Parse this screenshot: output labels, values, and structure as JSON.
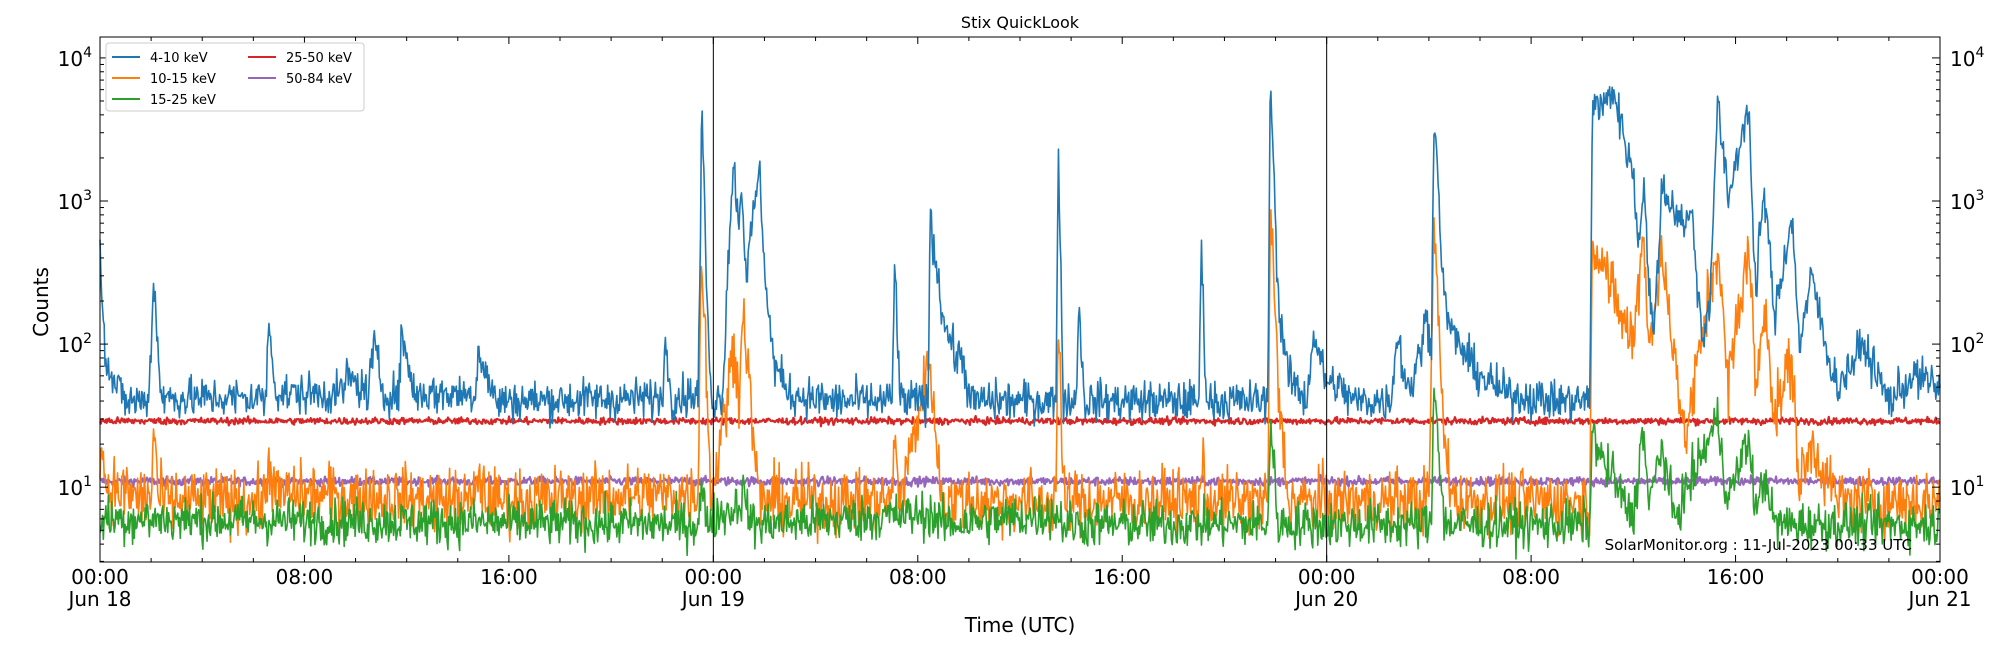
{
  "chart_data": {
    "type": "line",
    "title": "Stix QuickLook",
    "xlabel": "Time (UTC)",
    "ylabel": "Counts",
    "yscale": "log",
    "ylim": [
      3,
      14000
    ],
    "xlim_hours": [
      0,
      72
    ],
    "grid": false,
    "legend_position": "top-left",
    "x_ticks": [
      {
        "hour": 0,
        "line1": "00:00",
        "line2": "Jun 18"
      },
      {
        "hour": 8,
        "line1": "08:00",
        "line2": ""
      },
      {
        "hour": 16,
        "line1": "16:00",
        "line2": ""
      },
      {
        "hour": 24,
        "line1": "00:00",
        "line2": "Jun 19"
      },
      {
        "hour": 32,
        "line1": "08:00",
        "line2": ""
      },
      {
        "hour": 40,
        "line1": "16:00",
        "line2": ""
      },
      {
        "hour": 48,
        "line1": "00:00",
        "line2": "Jun 20"
      },
      {
        "hour": 56,
        "line1": "08:00",
        "line2": ""
      },
      {
        "hour": 64,
        "line1": "16:00",
        "line2": ""
      },
      {
        "hour": 72,
        "line1": "00:00",
        "line2": "Jun 21"
      }
    ],
    "y_ticks": [
      {
        "value": 10,
        "base": "10",
        "exp": "1"
      },
      {
        "value": 100,
        "base": "10",
        "exp": "2"
      },
      {
        "value": 1000,
        "base": "10",
        "exp": "3"
      },
      {
        "value": 10000,
        "base": "10",
        "exp": "4"
      }
    ],
    "day_boundaries_hours": [
      24,
      48
    ],
    "annotation": "SolarMonitor.org : 11-Jul-2023 00:33 UTC",
    "series": [
      {
        "name": "4-10 keV",
        "color": "#1f77b4",
        "base": 37,
        "noise": 0.07,
        "points": [
          [
            0.0,
            520
          ],
          [
            0.2,
            90
          ],
          [
            0.5,
            55
          ],
          [
            1.0,
            40
          ],
          [
            1.9,
            40
          ],
          [
            2.1,
            280
          ],
          [
            2.4,
            42
          ],
          [
            6.5,
            42
          ],
          [
            6.6,
            145
          ],
          [
            6.9,
            45
          ],
          [
            9.5,
            45
          ],
          [
            9.6,
            60
          ],
          [
            10.5,
            45
          ],
          [
            10.7,
            100
          ],
          [
            11.1,
            45
          ],
          [
            11.7,
            45
          ],
          [
            11.8,
            120
          ],
          [
            12.3,
            45
          ],
          [
            14.7,
            45
          ],
          [
            14.8,
            95
          ],
          [
            15.2,
            55
          ],
          [
            15.5,
            40
          ],
          [
            22.0,
            42
          ],
          [
            22.1,
            100
          ],
          [
            22.4,
            42
          ],
          [
            23.4,
            45
          ],
          [
            23.5,
            600
          ],
          [
            23.55,
            5800
          ],
          [
            23.7,
            400
          ],
          [
            23.9,
            42
          ],
          [
            24.3,
            42
          ],
          [
            24.4,
            60
          ],
          [
            24.6,
            500
          ],
          [
            24.8,
            1800
          ],
          [
            25.0,
            700
          ],
          [
            25.1,
            1300
          ],
          [
            25.3,
            300
          ],
          [
            25.6,
            900
          ],
          [
            25.8,
            1600
          ],
          [
            26.1,
            200
          ],
          [
            26.4,
            70
          ],
          [
            27.0,
            45
          ],
          [
            28.5,
            40
          ],
          [
            31.0,
            40
          ],
          [
            31.1,
            420
          ],
          [
            31.3,
            40
          ],
          [
            32.4,
            40
          ],
          [
            32.5,
            900
          ],
          [
            32.6,
            500
          ],
          [
            32.8,
            300
          ],
          [
            33.0,
            150
          ],
          [
            33.5,
            80
          ],
          [
            33.8,
            80
          ],
          [
            34.0,
            40
          ],
          [
            37.4,
            40
          ],
          [
            37.5,
            2200
          ],
          [
            37.7,
            40
          ],
          [
            38.2,
            40
          ],
          [
            38.3,
            220
          ],
          [
            38.5,
            40
          ],
          [
            43.0,
            40
          ],
          [
            43.1,
            480
          ],
          [
            43.3,
            40
          ],
          [
            45.7,
            40
          ],
          [
            45.8,
            9000
          ],
          [
            46.1,
            200
          ],
          [
            46.5,
            60
          ],
          [
            47.2,
            40
          ],
          [
            47.5,
            120
          ],
          [
            47.9,
            60
          ],
          [
            48.0,
            55
          ],
          [
            48.5,
            50
          ],
          [
            49.0,
            40
          ],
          [
            50.5,
            40
          ],
          [
            50.8,
            130
          ],
          [
            51.0,
            60
          ],
          [
            51.3,
            50
          ],
          [
            51.6,
            80
          ],
          [
            51.9,
            150
          ],
          [
            52.1,
            100
          ],
          [
            52.2,
            4500
          ],
          [
            52.6,
            200
          ],
          [
            52.9,
            120
          ],
          [
            53.5,
            80
          ],
          [
            54.0,
            60
          ],
          [
            55.0,
            45
          ],
          [
            57.0,
            40
          ],
          [
            58.3,
            40
          ],
          [
            58.4,
            5200
          ],
          [
            58.8,
            4400
          ],
          [
            59.2,
            6100
          ],
          [
            59.6,
            3000
          ],
          [
            60.0,
            1500
          ],
          [
            60.2,
            500
          ],
          [
            60.4,
            1400
          ],
          [
            60.6,
            300
          ],
          [
            60.8,
            100
          ],
          [
            61.1,
            1200
          ],
          [
            61.6,
            900
          ],
          [
            62.0,
            700
          ],
          [
            62.3,
            800
          ],
          [
            62.7,
            100
          ],
          [
            63.0,
            220
          ],
          [
            63.3,
            5000
          ],
          [
            63.7,
            1000
          ],
          [
            64.5,
            4900
          ],
          [
            64.8,
            200
          ],
          [
            65.0,
            800
          ],
          [
            65.2,
            1000
          ],
          [
            65.5,
            150
          ],
          [
            65.8,
            300
          ],
          [
            66.2,
            800
          ],
          [
            66.5,
            100
          ],
          [
            67.0,
            300
          ],
          [
            67.5,
            100
          ],
          [
            68.0,
            50
          ],
          [
            69.0,
            100
          ],
          [
            70.0,
            40
          ],
          [
            71.0,
            60
          ],
          [
            72.0,
            50
          ]
        ]
      },
      {
        "name": "10-15 keV",
        "color": "#ff7f0e",
        "base": 8.3,
        "noise": 0.11,
        "points": [
          [
            0.0,
            20
          ],
          [
            0.3,
            10
          ],
          [
            2.0,
            8
          ],
          [
            2.1,
            28
          ],
          [
            2.3,
            8
          ],
          [
            6.5,
            8
          ],
          [
            6.6,
            18
          ],
          [
            6.8,
            9
          ],
          [
            14.7,
            8
          ],
          [
            14.8,
            13
          ],
          [
            15.1,
            8
          ],
          [
            23.4,
            9
          ],
          [
            23.5,
            200
          ],
          [
            23.55,
            440
          ],
          [
            23.7,
            100
          ],
          [
            23.9,
            8
          ],
          [
            24.6,
            50
          ],
          [
            24.8,
            100
          ],
          [
            25.0,
            50
          ],
          [
            25.2,
            170
          ],
          [
            25.5,
            30
          ],
          [
            25.8,
            8
          ],
          [
            31.0,
            8
          ],
          [
            31.1,
            25
          ],
          [
            31.3,
            8
          ],
          [
            32.5,
            80
          ],
          [
            32.7,
            20
          ],
          [
            33.0,
            8
          ],
          [
            37.4,
            8
          ],
          [
            37.5,
            170
          ],
          [
            37.7,
            8
          ],
          [
            43.0,
            8
          ],
          [
            43.1,
            14
          ],
          [
            43.3,
            8
          ],
          [
            45.7,
            8
          ],
          [
            45.8,
            1000
          ],
          [
            46.1,
            50
          ],
          [
            46.5,
            8
          ],
          [
            52.0,
            8
          ],
          [
            52.2,
            720
          ],
          [
            52.6,
            20
          ],
          [
            53.0,
            8
          ],
          [
            58.3,
            8
          ],
          [
            58.4,
            500
          ],
          [
            58.8,
            450
          ],
          [
            59.2,
            200
          ],
          [
            59.6,
            150
          ],
          [
            60.0,
            100
          ],
          [
            60.4,
            650
          ],
          [
            60.6,
            100
          ],
          [
            61.1,
            400
          ],
          [
            61.6,
            100
          ],
          [
            62.0,
            20
          ],
          [
            63.3,
            500
          ],
          [
            63.7,
            50
          ],
          [
            64.5,
            500
          ],
          [
            64.8,
            50
          ],
          [
            65.2,
            200
          ],
          [
            65.5,
            30
          ],
          [
            66.2,
            80
          ],
          [
            66.5,
            10
          ],
          [
            67.0,
            20
          ],
          [
            68.0,
            8
          ],
          [
            72.0,
            8
          ]
        ]
      },
      {
        "name": "15-25 keV",
        "color": "#2ca02c",
        "base": 5.5,
        "noise": 0.08,
        "points": [
          [
            0.0,
            6
          ],
          [
            23.4,
            5.5
          ],
          [
            23.55,
            10
          ],
          [
            23.7,
            6
          ],
          [
            24.8,
            7
          ],
          [
            25.2,
            9
          ],
          [
            25.5,
            5.5
          ],
          [
            32.5,
            6.5
          ],
          [
            33.0,
            5.5
          ],
          [
            37.5,
            6.5
          ],
          [
            37.7,
            5.5
          ],
          [
            45.7,
            5.5
          ],
          [
            45.8,
            28
          ],
          [
            46.1,
            5.5
          ],
          [
            52.1,
            5.5
          ],
          [
            52.2,
            60
          ],
          [
            52.6,
            5.5
          ],
          [
            58.3,
            5.5
          ],
          [
            58.4,
            25
          ],
          [
            58.8,
            15
          ],
          [
            59.2,
            12
          ],
          [
            59.6,
            8
          ],
          [
            60.0,
            6
          ],
          [
            60.4,
            28
          ],
          [
            60.6,
            7
          ],
          [
            61.1,
            20
          ],
          [
            61.6,
            6
          ],
          [
            63.3,
            30
          ],
          [
            63.7,
            8
          ],
          [
            64.5,
            22
          ],
          [
            64.8,
            7
          ],
          [
            65.2,
            12
          ],
          [
            65.5,
            5.5
          ],
          [
            72.0,
            5.5
          ]
        ]
      },
      {
        "name": "25-50 keV",
        "color": "#d62728",
        "base": 28.5,
        "noise": 0.012,
        "points": [
          [
            0.0,
            29
          ],
          [
            72.0,
            29
          ]
        ]
      },
      {
        "name": "50-84 keV",
        "color": "#9467bd",
        "base": 10.8,
        "noise": 0.015,
        "points": [
          [
            0.0,
            11
          ],
          [
            72.0,
            11
          ]
        ]
      }
    ]
  }
}
